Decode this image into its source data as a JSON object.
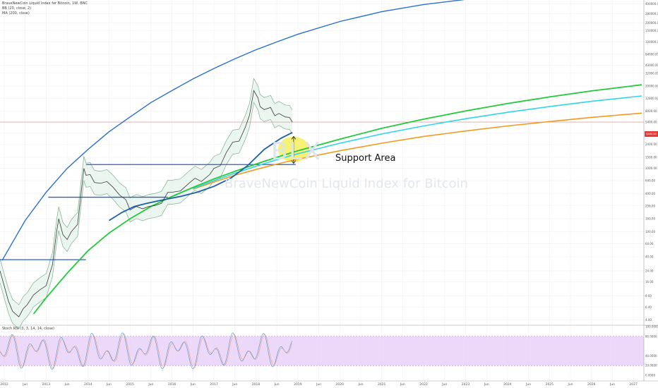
{
  "header": {
    "symbol_line": "BraveNewCoin Liquid Index for Bitcoin, 1W, BNC",
    "indicator_1": "BB (20, close, 2)",
    "indicator_2": "MA (200, close)"
  },
  "watermark": {
    "ticker": "BLX",
    "name": "BraveNewCoin Liquid Index for Bitcoin"
  },
  "annotation": "Support Area",
  "last_price_badge": "5400.00",
  "oscillator_label": "Stoch RSI (3, 3, 14, 14, close)",
  "colors": {
    "price": "#3a3a3a",
    "bands": "#7fb08f",
    "band_fill": "#dcefe3",
    "ma": "#1f5fa6",
    "blue_arc": "#2a6fd1",
    "green_curve": "#22c93a",
    "cyan_curve": "#2fd6e6",
    "orange_curve": "#f39a1e",
    "support_horizontals": "#2a5fbf",
    "current_price_line": "#e8a3a3",
    "highlight": "#f5f05a",
    "osc_fill": "#e6ccf7",
    "osc_line": "#4a90c9"
  },
  "chart_data": {
    "type": "line",
    "y_scale": "log",
    "title": "",
    "xlabel": "",
    "ylabel": "",
    "x_tick_labels": [
      "2012",
      "Jun",
      "2013",
      "Jun",
      "2014",
      "Jun",
      "2015",
      "Jun",
      "2016",
      "Jun",
      "2017",
      "Jun",
      "2018",
      "Jun",
      "2019",
      "Jun",
      "2020",
      "Jun",
      "2021",
      "Jun",
      "2022",
      "Jun",
      "2023",
      "Jun",
      "2024",
      "Jun",
      "2025",
      "Jun",
      "2026",
      "Jun",
      "2027"
    ],
    "y_tick_labels": [
      "400000.00",
      "280000.00",
      "200000.00",
      "150000.00",
      "100000.00",
      "64000.00",
      "43000.00",
      "32000.00",
      "20000.00",
      "12800.00",
      "8000.00",
      "5400.00",
      "3600.00",
      "2400.00",
      "1500.00",
      "1000.00",
      "640.00",
      "400.00",
      "256.00",
      "160.00",
      "100.00",
      "64.00",
      "40.00",
      "24.00",
      "16.00",
      "9.60",
      "6.40",
      "4.00"
    ],
    "y_tick_values": [
      400000,
      280000,
      200000,
      150000,
      100000,
      64000,
      43000,
      32000,
      20000,
      12800,
      8000,
      5400,
      3600,
      2400,
      1500,
      1000,
      640,
      400,
      256,
      160,
      100,
      64,
      40,
      24,
      16,
      9.6,
      6.4,
      4
    ],
    "series": [
      {
        "role": "price",
        "points": [
          [
            2011.9,
            24
          ],
          [
            2012.0,
            14
          ],
          [
            2012.1,
            8
          ],
          [
            2012.2,
            5.5
          ],
          [
            2012.35,
            4.5
          ],
          [
            2012.45,
            6
          ],
          [
            2012.55,
            7
          ],
          [
            2012.7,
            10
          ],
          [
            2012.85,
            12
          ],
          [
            2013.0,
            14
          ],
          [
            2013.15,
            30
          ],
          [
            2013.25,
            100
          ],
          [
            2013.3,
            160
          ],
          [
            2013.4,
            90
          ],
          [
            2013.5,
            75
          ],
          [
            2013.6,
            100
          ],
          [
            2013.75,
            130
          ],
          [
            2013.9,
            1000
          ],
          [
            2013.95,
            780
          ],
          [
            2014.05,
            800
          ],
          [
            2014.15,
            600
          ],
          [
            2014.3,
            580
          ],
          [
            2014.45,
            620
          ],
          [
            2014.6,
            500
          ],
          [
            2014.75,
            380
          ],
          [
            2014.9,
            320
          ],
          [
            2015.0,
            220
          ],
          [
            2015.15,
            250
          ],
          [
            2015.3,
            230
          ],
          [
            2015.45,
            250
          ],
          [
            2015.6,
            260
          ],
          [
            2015.75,
            280
          ],
          [
            2015.9,
            420
          ],
          [
            2016.0,
            420
          ],
          [
            2016.2,
            440
          ],
          [
            2016.4,
            580
          ],
          [
            2016.55,
            700
          ],
          [
            2016.7,
            620
          ],
          [
            2016.9,
            800
          ],
          [
            2017.0,
            1000
          ],
          [
            2017.15,
            1100
          ],
          [
            2017.3,
            1800
          ],
          [
            2017.45,
            2600
          ],
          [
            2017.6,
            2700
          ],
          [
            2017.75,
            4500
          ],
          [
            2017.85,
            7000
          ],
          [
            2017.95,
            17000
          ],
          [
            2018.05,
            13000
          ],
          [
            2018.1,
            9500
          ],
          [
            2018.2,
            8500
          ],
          [
            2018.35,
            9200
          ],
          [
            2018.45,
            6800
          ],
          [
            2018.55,
            7400
          ],
          [
            2018.7,
            6500
          ],
          [
            2018.8,
            6400
          ],
          [
            2018.87,
            5400
          ]
        ]
      },
      {
        "role": "ma200",
        "points": [
          [
            2014.5,
            150
          ],
          [
            2014.8,
            200
          ],
          [
            2015.1,
            250
          ],
          [
            2015.4,
            280
          ],
          [
            2015.8,
            320
          ],
          [
            2016.2,
            360
          ],
          [
            2016.6,
            420
          ],
          [
            2017.0,
            520
          ],
          [
            2017.4,
            700
          ],
          [
            2017.8,
            1100
          ],
          [
            2018.2,
            2000
          ],
          [
            2018.6,
            3000
          ],
          [
            2018.87,
            3700
          ]
        ]
      },
      {
        "role": "blue_arc",
        "points": [
          [
            2011.95,
            35
          ],
          [
            2012.5,
            150
          ],
          [
            2013.0,
            420
          ],
          [
            2013.5,
            1000
          ],
          [
            2014.0,
            2000
          ],
          [
            2014.5,
            3800
          ],
          [
            2015.0,
            6500
          ],
          [
            2015.5,
            11000
          ],
          [
            2016.0,
            17000
          ],
          [
            2016.5,
            26000
          ],
          [
            2017.0,
            38000
          ],
          [
            2017.5,
            54000
          ],
          [
            2018.0,
            75000
          ],
          [
            2018.5,
            100000
          ],
          [
            2019.0,
            132000
          ],
          [
            2020.0,
            210000
          ],
          [
            2021.0,
            300000
          ],
          [
            2022.0,
            390000
          ],
          [
            2023.0,
            470000
          ],
          [
            2024.0,
            520000
          ],
          [
            2025.0,
            570000
          ],
          [
            2026.0,
            610000
          ],
          [
            2026.35,
            630000
          ]
        ]
      },
      {
        "role": "green_curve",
        "points": [
          [
            2012.7,
            5
          ],
          [
            2013.0,
            9
          ],
          [
            2013.5,
            22
          ],
          [
            2014.0,
            50
          ],
          [
            2014.5,
            95
          ],
          [
            2015.0,
            160
          ],
          [
            2015.5,
            250
          ],
          [
            2016.0,
            360
          ],
          [
            2016.5,
            500
          ],
          [
            2017.0,
            680
          ],
          [
            2017.5,
            900
          ],
          [
            2018.0,
            1170
          ],
          [
            2018.5,
            1500
          ],
          [
            2019.0,
            1900
          ],
          [
            2020.0,
            2900
          ],
          [
            2021.0,
            4300
          ],
          [
            2022.0,
            6000
          ],
          [
            2023.0,
            8100
          ],
          [
            2024.0,
            10600
          ],
          [
            2025.0,
            13500
          ],
          [
            2026.0,
            16800
          ],
          [
            2027.2,
            21000
          ]
        ]
      },
      {
        "role": "cyan_curve",
        "points": [
          [
            2016.5,
            480
          ],
          [
            2017.0,
            640
          ],
          [
            2017.5,
            840
          ],
          [
            2018.0,
            1080
          ],
          [
            2018.5,
            1370
          ],
          [
            2019.0,
            1700
          ],
          [
            2020.0,
            2500
          ],
          [
            2021.0,
            3500
          ],
          [
            2022.0,
            4700
          ],
          [
            2023.0,
            6100
          ],
          [
            2024.0,
            7700
          ],
          [
            2025.0,
            9500
          ],
          [
            2026.0,
            11500
          ],
          [
            2027.2,
            14000
          ]
        ]
      },
      {
        "role": "orange_curve",
        "points": [
          [
            2016.5,
            470
          ],
          [
            2017.0,
            610
          ],
          [
            2017.5,
            780
          ],
          [
            2018.0,
            960
          ],
          [
            2018.5,
            1170
          ],
          [
            2019.0,
            1400
          ],
          [
            2020.0,
            1900
          ],
          [
            2021.0,
            2500
          ],
          [
            2022.0,
            3200
          ],
          [
            2023.0,
            3900
          ],
          [
            2024.0,
            4700
          ],
          [
            2025.0,
            5500
          ],
          [
            2026.0,
            6400
          ],
          [
            2027.2,
            7500
          ]
        ]
      },
      {
        "role": "horizontal",
        "y": 36,
        "x_range": [
          2011.9,
          2013.95
        ]
      },
      {
        "role": "horizontal",
        "y": 350,
        "x_range": [
          2013.05,
          2015.9
        ]
      },
      {
        "role": "horizontal",
        "y": 1150,
        "x_range": [
          2013.95,
          2018.95
        ]
      }
    ],
    "highlight": {
      "label": "Support Area",
      "x": 2018.9,
      "y": 2000
    },
    "current_price": 5400,
    "oscillator": {
      "y_tick_labels": [
        "100.0000",
        "80.0000",
        "40.0000",
        "20.0000",
        "0.0000"
      ],
      "y_tick_values": [
        100,
        80,
        40,
        20,
        0
      ],
      "band": [
        20,
        80
      ]
    }
  }
}
